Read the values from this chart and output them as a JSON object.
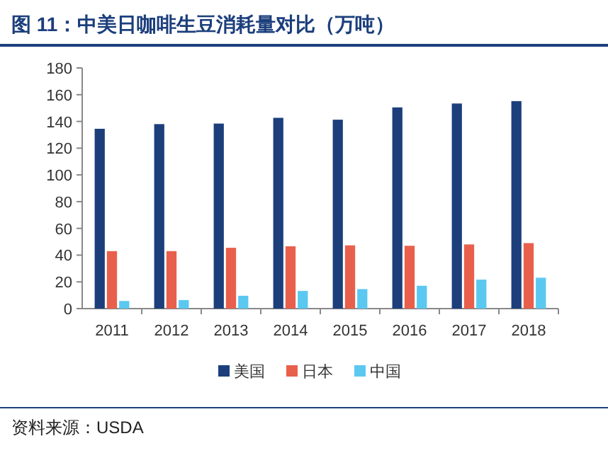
{
  "chart_data": {
    "type": "bar",
    "title": "图 11：中美日咖啡生豆消耗量对比（万吨）",
    "categories": [
      "2011",
      "2012",
      "2013",
      "2014",
      "2015",
      "2016",
      "2017",
      "2018"
    ],
    "series": [
      {
        "name": "美国",
        "color": "#1c3f7c",
        "values": [
          134.5,
          138,
          138.4,
          142.7,
          141.3,
          150.5,
          153.4,
          155.2
        ]
      },
      {
        "name": "日本",
        "color": "#e8604c",
        "values": [
          43,
          43,
          45.5,
          46.6,
          47.3,
          47,
          48,
          49
        ]
      },
      {
        "name": "中国",
        "color": "#5bc8f0",
        "values": [
          5.7,
          6.4,
          9.6,
          13.2,
          14.6,
          17.1,
          21.7,
          23.1
        ]
      }
    ],
    "ylim": [
      0,
      180
    ],
    "yticks": [
      0,
      20,
      40,
      60,
      80,
      100,
      120,
      140,
      160,
      180
    ],
    "grid": false,
    "legend": "bottom",
    "annotations": [
      "资料来源：USDA"
    ]
  }
}
